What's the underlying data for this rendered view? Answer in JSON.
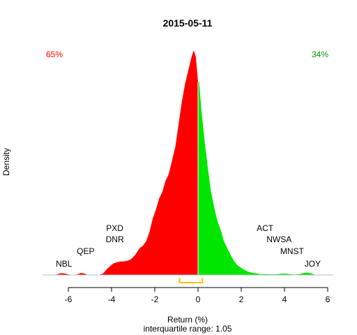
{
  "chart_data": {
    "type": "area",
    "title": "2015-05-11",
    "xlabel": "Return (%)",
    "ylabel": "Density",
    "subtitle": "interquartile range: 1.05",
    "xlim": [
      -7.2,
      6.2
    ],
    "ylim": [
      0,
      1
    ],
    "x_ticks": [
      -6,
      -4,
      -2,
      0,
      2,
      4,
      6
    ],
    "split_at": 0,
    "pct_negative": "65%",
    "pct_positive": "34%",
    "colors": {
      "negative": "#ff0000",
      "positive": "#00e600",
      "iqr": "#ffc000",
      "axis": "#000000",
      "baseline": "#bebebe"
    },
    "interquartile": {
      "q1": -0.85,
      "q3": 0.2,
      "range": 1.05
    },
    "density": {
      "x": [
        -6.6,
        -6.45,
        -6.3,
        -6.15,
        -6.0,
        -5.85,
        -5.7,
        -5.55,
        -5.4,
        -5.25,
        -5.1,
        -4.95,
        -4.8,
        -4.6,
        -4.4,
        -4.2,
        -4.0,
        -3.9,
        -3.8,
        -3.7,
        -3.6,
        -3.5,
        -3.3,
        -3.1,
        -2.9,
        -2.7,
        -2.55,
        -2.4,
        -2.25,
        -2.1,
        -1.95,
        -1.8,
        -1.65,
        -1.5,
        -1.35,
        -1.2,
        -1.05,
        -0.9,
        -0.75,
        -0.6,
        -0.45,
        -0.3,
        -0.2,
        -0.1,
        0.0,
        0.05,
        0.15,
        0.3,
        0.45,
        0.6,
        0.75,
        0.9,
        1.05,
        1.2,
        1.35,
        1.5,
        1.65,
        1.8,
        1.95,
        2.1,
        2.3,
        2.5,
        2.7,
        2.9,
        3.1,
        3.3,
        3.5,
        3.7,
        3.9,
        4.1,
        4.3,
        4.5,
        4.7,
        4.9,
        5.05,
        5.2,
        5.35,
        5.5
      ],
      "y": [
        0.0,
        0.005,
        0.008,
        0.006,
        0.003,
        0.0,
        0.0,
        0.004,
        0.009,
        0.006,
        0.0,
        0.0,
        0.0,
        0.0,
        0.006,
        0.028,
        0.045,
        0.052,
        0.055,
        0.058,
        0.06,
        0.06,
        0.062,
        0.07,
        0.09,
        0.12,
        0.13,
        0.15,
        0.19,
        0.25,
        0.29,
        0.34,
        0.37,
        0.42,
        0.45,
        0.51,
        0.57,
        0.67,
        0.77,
        0.85,
        0.91,
        0.97,
        1.0,
        0.97,
        0.86,
        0.86,
        0.74,
        0.6,
        0.48,
        0.37,
        0.3,
        0.24,
        0.2,
        0.15,
        0.12,
        0.09,
        0.065,
        0.045,
        0.035,
        0.025,
        0.015,
        0.01,
        0.007,
        0.004,
        0.004,
        0.003,
        0.003,
        0.004,
        0.006,
        0.006,
        0.003,
        0.002,
        0.004,
        0.009,
        0.011,
        0.008,
        0.003,
        0.0
      ]
    },
    "annotations": [
      {
        "label": "NBL",
        "x": -6.2,
        "row": 0
      },
      {
        "label": "QEP",
        "x": -5.2,
        "row": 1
      },
      {
        "label": "DNR",
        "x": -3.85,
        "row": 2
      },
      {
        "label": "PXD",
        "x": -3.85,
        "row": 3
      },
      {
        "label": "JOY",
        "x": 5.3,
        "row": 0
      },
      {
        "label": "MNST",
        "x": 4.35,
        "row": 1
      },
      {
        "label": "NWSA",
        "x": 3.75,
        "row": 2
      },
      {
        "label": "ACT",
        "x": 3.1,
        "row": 3
      }
    ]
  }
}
